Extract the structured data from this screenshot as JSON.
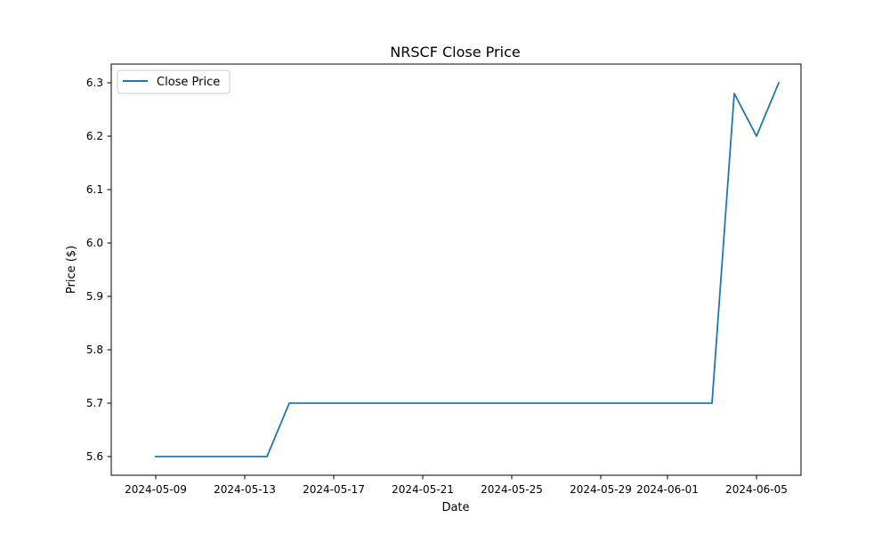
{
  "chart_data": {
    "type": "line",
    "title": "NRSCF Close Price",
    "xlabel": "Date",
    "ylabel": "Price ($)",
    "x_ticks": [
      "2024-05-09",
      "2024-05-13",
      "2024-05-17",
      "2024-05-21",
      "2024-05-25",
      "2024-05-29",
      "2024-06-01",
      "2024-06-05"
    ],
    "y_ticks": [
      5.6,
      5.7,
      5.8,
      5.9,
      6.0,
      6.1,
      6.2,
      6.3
    ],
    "xlim": [
      "2024-05-07",
      "2024-06-07"
    ],
    "ylim": [
      5.565,
      6.335
    ],
    "grid": false,
    "legend": "upper-left",
    "series": [
      {
        "name": "Close Price",
        "color": "#1f77b4",
        "x": [
          "2024-05-09",
          "2024-05-10",
          "2024-05-13",
          "2024-05-14",
          "2024-05-15",
          "2024-05-16",
          "2024-05-17",
          "2024-05-20",
          "2024-05-21",
          "2024-05-22",
          "2024-05-23",
          "2024-05-24",
          "2024-05-28",
          "2024-05-29",
          "2024-05-30",
          "2024-05-31",
          "2024-06-03",
          "2024-06-04",
          "2024-06-05",
          "2024-06-06"
        ],
        "y": [
          5.6,
          5.6,
          5.6,
          5.6,
          5.7,
          5.7,
          5.7,
          5.7,
          5.7,
          5.7,
          5.7,
          5.7,
          5.7,
          5.7,
          5.7,
          5.7,
          5.7,
          6.28,
          6.2,
          6.3
        ]
      }
    ]
  }
}
